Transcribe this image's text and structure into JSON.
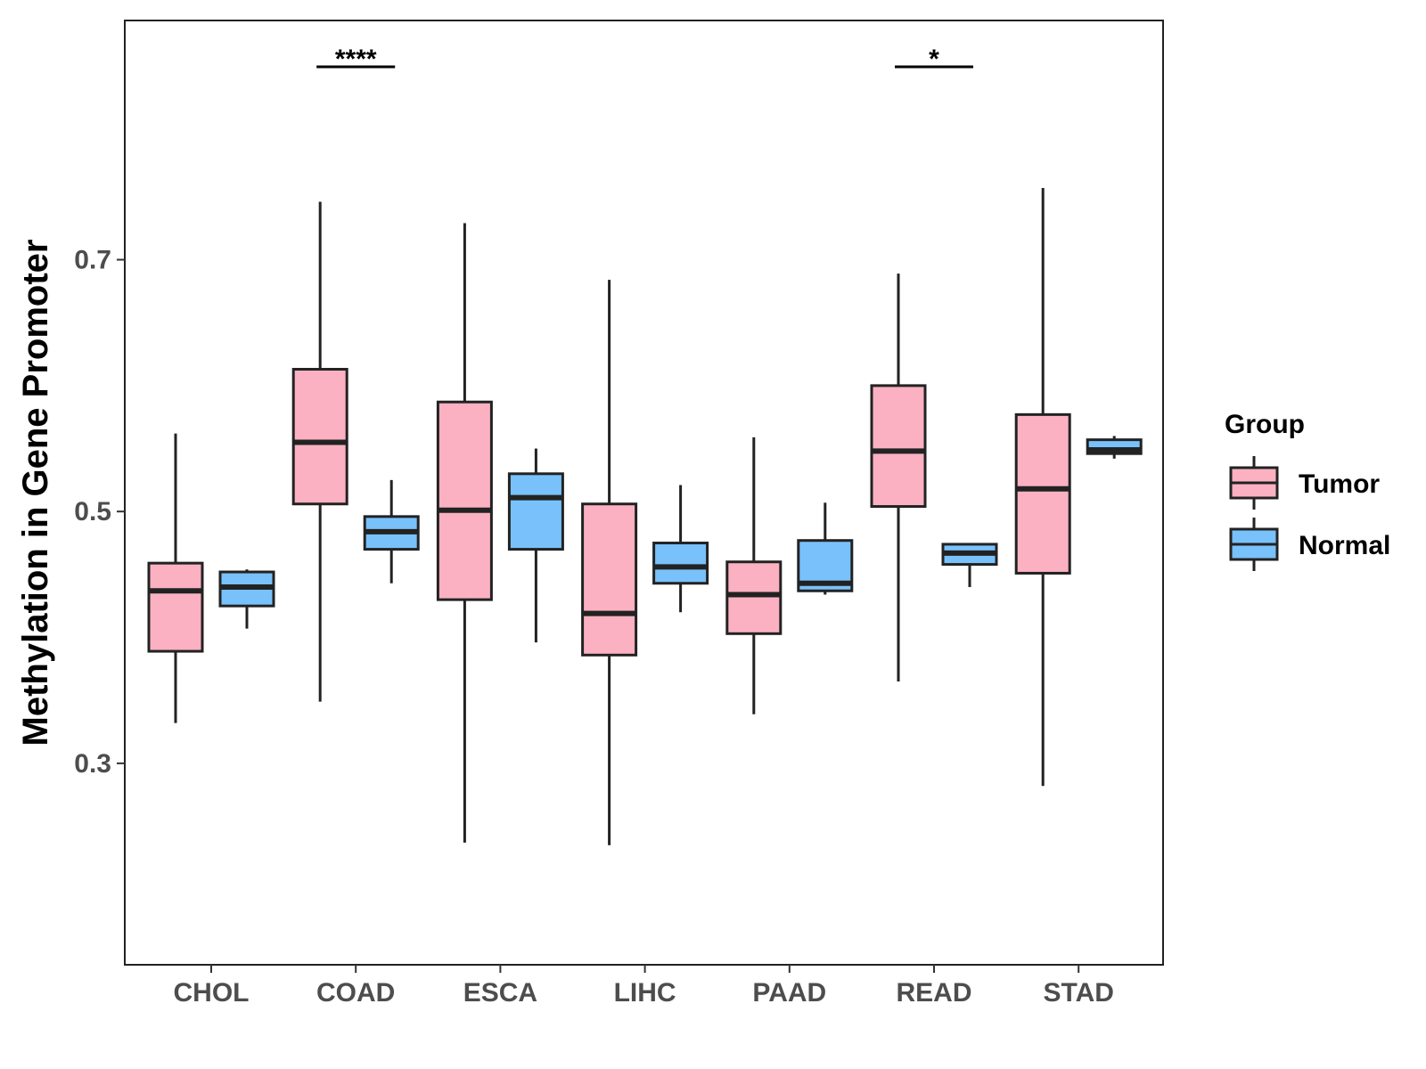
{
  "chart_data": {
    "type": "boxplot",
    "title": "",
    "xlabel": "",
    "ylabel": "Methylation in Gene Promoter",
    "ylim": [
      0.14,
      0.89
    ],
    "yticks": [
      0.3,
      0.5,
      0.7
    ],
    "ytick_labels": [
      "0.3",
      "0.5",
      "0.7"
    ],
    "categories": [
      "CHOL",
      "COAD",
      "ESCA",
      "LIHC",
      "PAAD",
      "READ",
      "STAD"
    ],
    "legend": {
      "title": "Group",
      "position": "right"
    },
    "series": [
      {
        "name": "Tumor",
        "color": "#FBB1C2",
        "boxes": [
          {
            "low": 0.332,
            "q1": 0.389,
            "median": 0.437,
            "q3": 0.459,
            "high": 0.562
          },
          {
            "low": 0.349,
            "q1": 0.506,
            "median": 0.555,
            "q3": 0.613,
            "high": 0.746
          },
          {
            "low": 0.237,
            "q1": 0.43,
            "median": 0.501,
            "q3": 0.587,
            "high": 0.729
          },
          {
            "low": 0.235,
            "q1": 0.386,
            "median": 0.419,
            "q3": 0.506,
            "high": 0.684
          },
          {
            "low": 0.339,
            "q1": 0.403,
            "median": 0.434,
            "q3": 0.46,
            "high": 0.559
          },
          {
            "low": 0.365,
            "q1": 0.504,
            "median": 0.548,
            "q3": 0.6,
            "high": 0.689
          },
          {
            "low": 0.282,
            "q1": 0.451,
            "median": 0.518,
            "q3": 0.577,
            "high": 0.757
          }
        ]
      },
      {
        "name": "Normal",
        "color": "#79C1FA",
        "boxes": [
          {
            "low": 0.407,
            "q1": 0.425,
            "median": 0.44,
            "q3": 0.452,
            "high": 0.454
          },
          {
            "low": 0.443,
            "q1": 0.47,
            "median": 0.484,
            "q3": 0.496,
            "high": 0.525
          },
          {
            "low": 0.396,
            "q1": 0.47,
            "median": 0.511,
            "q3": 0.53,
            "high": 0.55
          },
          {
            "low": 0.42,
            "q1": 0.443,
            "median": 0.456,
            "q3": 0.475,
            "high": 0.521
          },
          {
            "low": 0.434,
            "q1": 0.437,
            "median": 0.443,
            "q3": 0.477,
            "high": 0.507
          },
          {
            "low": 0.44,
            "q1": 0.458,
            "median": 0.467,
            "q3": 0.474,
            "high": 0.475
          },
          {
            "low": 0.542,
            "q1": 0.546,
            "median": 0.549,
            "q3": 0.557,
            "high": 0.56
          }
        ]
      }
    ],
    "annotations": [
      {
        "category": "COAD",
        "text": "****"
      },
      {
        "category": "READ",
        "text": "*"
      }
    ]
  }
}
